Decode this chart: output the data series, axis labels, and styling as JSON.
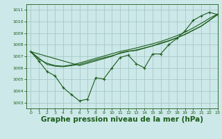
{
  "background_color": "#cce8e8",
  "grid_color": "#b0d0d0",
  "line_color": "#1a5c1a",
  "xlim": [
    -0.5,
    23
  ],
  "ylim": [
    1002.5,
    1011.5
  ],
  "yticks": [
    1003,
    1004,
    1005,
    1006,
    1007,
    1008,
    1009,
    1010,
    1011
  ],
  "xticks": [
    0,
    1,
    2,
    3,
    4,
    5,
    6,
    7,
    8,
    9,
    10,
    11,
    12,
    13,
    14,
    15,
    16,
    17,
    18,
    19,
    20,
    21,
    22,
    23
  ],
  "xlabel": "Graphe pression niveau de la mer (hPa)",
  "xlabel_fontsize": 7.5,
  "main_line_x": [
    0,
    1,
    2,
    3,
    4,
    5,
    6,
    7,
    8,
    9,
    10,
    11,
    12,
    13,
    14,
    15,
    16,
    17,
    18,
    19,
    20,
    21,
    22,
    23
  ],
  "main_line_y": [
    1007.4,
    1006.6,
    1005.7,
    1005.3,
    1004.3,
    1003.7,
    1003.15,
    1003.3,
    1005.15,
    1005.05,
    1006.0,
    1006.9,
    1007.1,
    1006.35,
    1006.0,
    1007.2,
    1007.2,
    1008.0,
    1008.55,
    1009.2,
    1010.1,
    1010.5,
    1010.8,
    1010.6
  ],
  "line1_x": [
    0,
    6,
    10,
    11,
    12,
    13,
    14,
    15,
    16,
    17,
    18,
    19,
    20,
    21,
    22,
    23
  ],
  "line1_y": [
    1007.4,
    1006.2,
    1007.0,
    1007.3,
    1007.45,
    1007.5,
    1007.7,
    1007.9,
    1008.15,
    1008.35,
    1008.6,
    1008.9,
    1009.25,
    1009.6,
    1010.1,
    1010.6
  ],
  "line2_x": [
    0,
    2,
    3,
    4,
    5,
    6,
    7,
    8,
    9,
    10,
    11,
    12,
    13,
    14,
    15,
    16,
    17,
    18,
    19,
    20,
    21,
    22,
    23
  ],
  "line2_y": [
    1007.4,
    1006.3,
    1006.15,
    1006.1,
    1006.2,
    1006.3,
    1006.5,
    1006.7,
    1006.88,
    1007.05,
    1007.25,
    1007.42,
    1007.55,
    1007.72,
    1007.9,
    1008.1,
    1008.32,
    1008.6,
    1008.88,
    1009.25,
    1009.62,
    1010.1,
    1010.6
  ],
  "line3_x": [
    0,
    1,
    2,
    3,
    4,
    5,
    6,
    7,
    8,
    9,
    10,
    11,
    12,
    13,
    14,
    15,
    16,
    17,
    18,
    19,
    20,
    21,
    22,
    23
  ],
  "line3_y": [
    1007.4,
    1006.75,
    1006.4,
    1006.2,
    1006.15,
    1006.25,
    1006.42,
    1006.62,
    1006.82,
    1007.02,
    1007.22,
    1007.42,
    1007.56,
    1007.72,
    1007.9,
    1008.08,
    1008.28,
    1008.52,
    1008.78,
    1009.08,
    1009.45,
    1009.85,
    1010.28,
    1010.65
  ]
}
